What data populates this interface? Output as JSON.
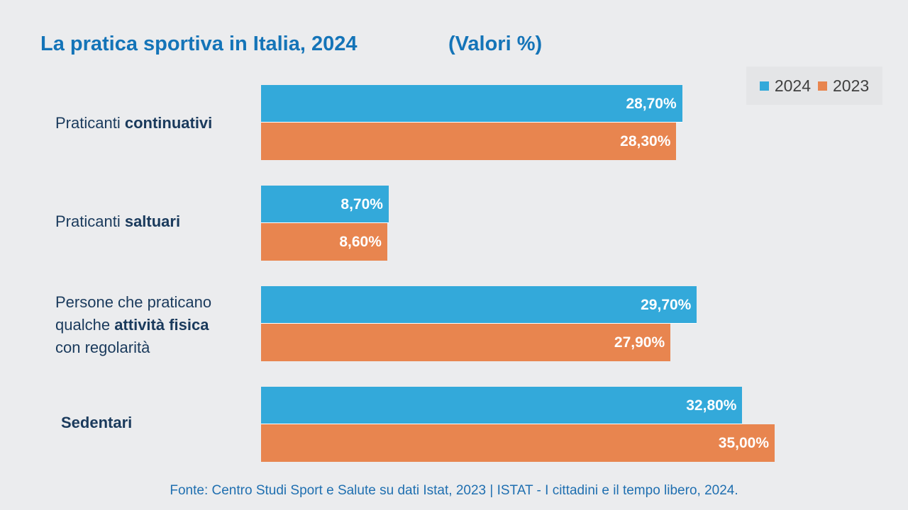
{
  "title": "La pratica sportiva in Italia, 2024",
  "units": "(Valori %)",
  "footer": "Fonte: Centro Studi Sport e Salute su dati Istat, 2023 | ISTAT - I cittadini e il tempo libero, 2024.",
  "colors": {
    "s2024": "#33a9da",
    "s2023": "#e8854f",
    "title": "#1474b8"
  },
  "chart_data": {
    "type": "bar",
    "orientation": "horizontal",
    "title": "La pratica sportiva in Italia, 2024",
    "xlabel": "",
    "ylabel": "",
    "xlim": [
      0,
      36
    ],
    "legend_position": "top-right",
    "grid": false,
    "categories": [
      {
        "parts": [
          {
            "t": "Praticanti ",
            "b": false
          },
          {
            "t": "continuativi",
            "b": true
          }
        ]
      },
      {
        "parts": [
          {
            "t": "Praticanti ",
            "b": false
          },
          {
            "t": "saltuari",
            "b": true
          }
        ]
      },
      {
        "parts": [
          {
            "t": "Persone che praticano",
            "b": false,
            "br": true
          },
          {
            "t": "qualche ",
            "b": false
          },
          {
            "t": "attività fisica",
            "b": true,
            "br": true
          },
          {
            "t": "con regolarità",
            "b": false
          }
        ]
      },
      {
        "parts": [
          {
            "t": "Sedentari",
            "b": true
          }
        ]
      }
    ],
    "series": [
      {
        "name": "2024",
        "values": [
          28.7,
          8.7,
          29.7,
          32.8
        ],
        "labels": [
          "28,70%",
          "8,70%",
          "29,70%",
          "32,80%"
        ]
      },
      {
        "name": "2023",
        "values": [
          28.3,
          8.6,
          27.9,
          35.0
        ],
        "labels": [
          "28,30%",
          "8,60%",
          "27,90%",
          "35,00%"
        ]
      }
    ]
  }
}
